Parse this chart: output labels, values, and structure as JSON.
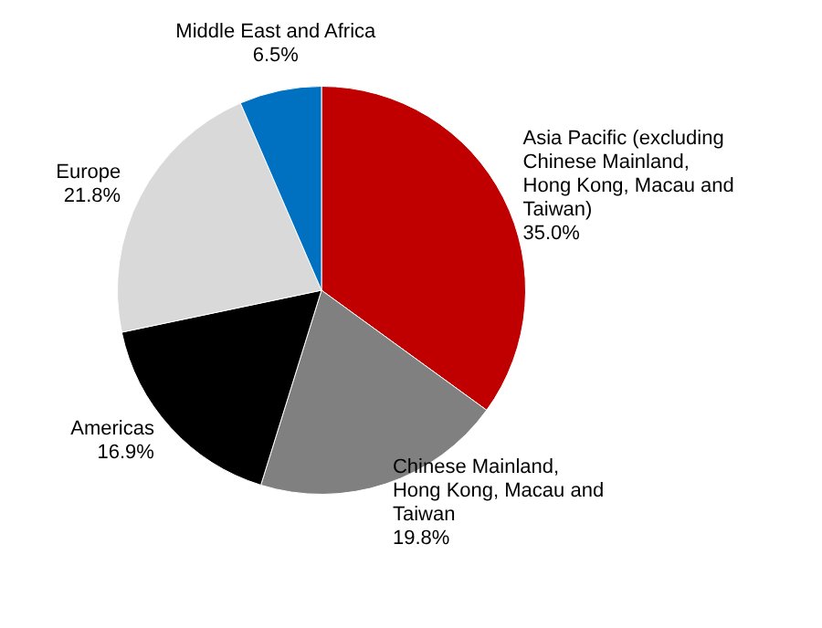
{
  "chart_data": {
    "type": "pie",
    "categories": [
      "Asia Pacific (excluding Chinese Mainland, Hong Kong, Macau and Taiwan)",
      "Chinese Mainland, Hong Kong, Macau and Taiwan",
      "Americas",
      "Europe",
      "Middle East and Africa"
    ],
    "values": [
      35.0,
      19.8,
      16.9,
      21.8,
      6.5
    ],
    "colors": [
      "#c00000",
      "#808080",
      "#000000",
      "#d9d9d9",
      "#0070c0"
    ],
    "value_labels": [
      "35.0%",
      "19.8%",
      "16.9%",
      "21.8%",
      "6.5%"
    ],
    "legend": false
  }
}
